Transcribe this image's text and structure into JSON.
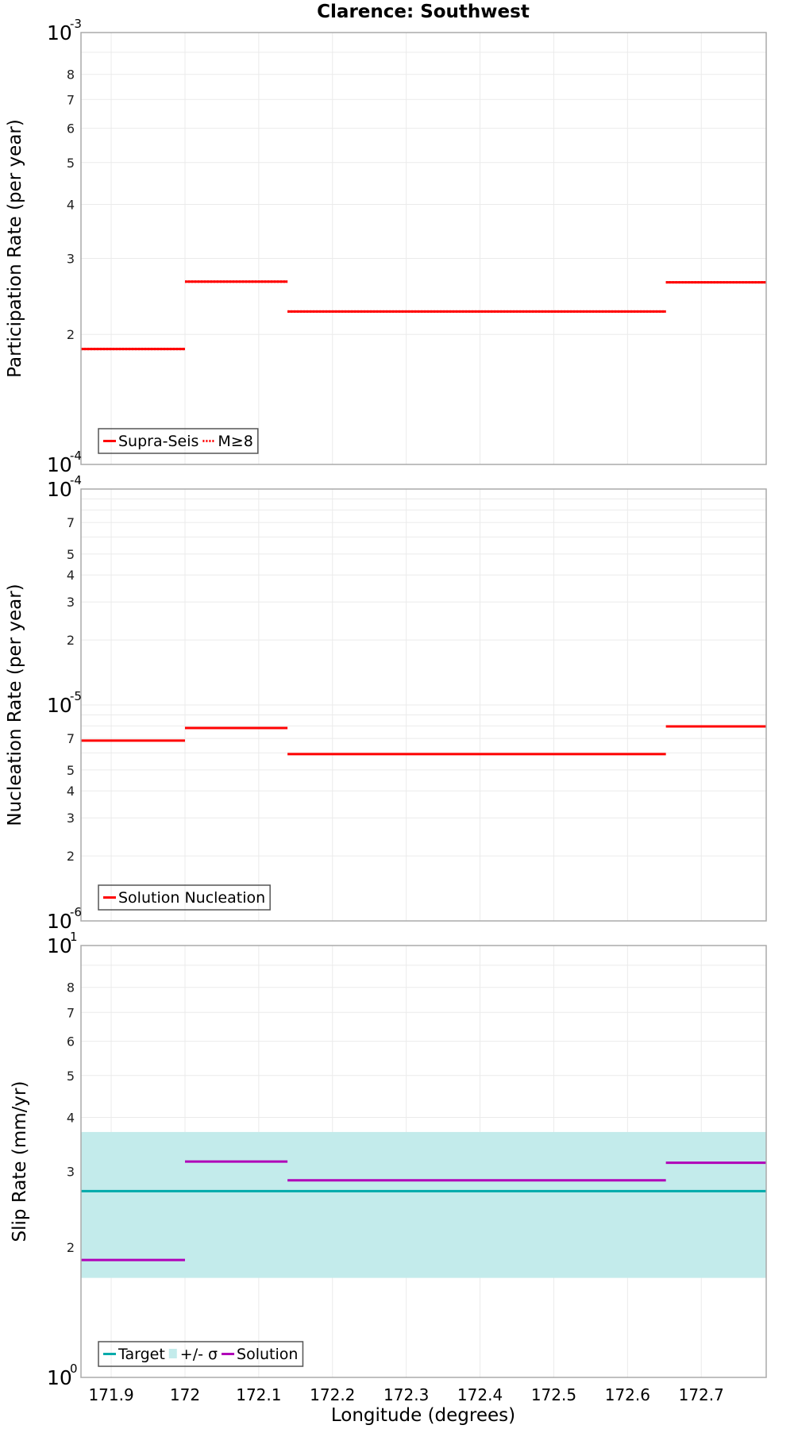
{
  "title": "Clarence: Southwest",
  "colors": {
    "solution_red": "#ff0000",
    "target_teal": "#00aaaa",
    "band_fill": "#c3ebeb",
    "solution_purple": "#b000b8",
    "grid": "#ebebeb",
    "frame": "#aaaaaa"
  },
  "chart_data": [
    {
      "type": "line",
      "panel": "participation",
      "title": "Clarence: Southwest",
      "xlabel": "Longitude (degrees)",
      "ylabel": "Participation Rate (per year)",
      "yscale": "log",
      "ylim": [
        0.0001,
        0.001
      ],
      "xlim": [
        171.859,
        172.788
      ],
      "ymajor_ticks": [
        {
          "base": "10",
          "exp": "-3",
          "value": 0.001
        },
        {
          "base": "10",
          "exp": "-4",
          "value": 0.0001
        }
      ],
      "yminor_ticks": [
        "2",
        "3",
        "4",
        "5",
        "6",
        "7",
        "8"
      ],
      "legend": [
        {
          "label": "Supra-Seis",
          "style": "solid",
          "color": "#ff0000"
        },
        {
          "label": "M≥8",
          "style": "dotted",
          "color": "#ff0000"
        }
      ],
      "series": [
        {
          "name": "Supra-Seis",
          "step_segments": [
            {
              "x0": 171.859,
              "x1": 172.0,
              "y": 0.000185
            },
            {
              "x0": 172.0,
              "x1": 172.139,
              "y": 0.000265
            },
            {
              "x0": 172.139,
              "x1": 172.652,
              "y": 0.000226
            },
            {
              "x0": 172.652,
              "x1": 172.788,
              "y": 0.000264
            }
          ]
        },
        {
          "name": "M≥8",
          "note": "overlaps Supra-Seis",
          "step_segments": [
            {
              "x0": 171.859,
              "x1": 172.0,
              "y": 0.000185
            },
            {
              "x0": 172.0,
              "x1": 172.139,
              "y": 0.000265
            },
            {
              "x0": 172.139,
              "x1": 172.652,
              "y": 0.000226
            },
            {
              "x0": 172.652,
              "x1": 172.788,
              "y": 0.000264
            }
          ]
        }
      ]
    },
    {
      "type": "line",
      "panel": "nucleation",
      "xlabel": "Longitude (degrees)",
      "ylabel": "Nucleation Rate (per year)",
      "yscale": "log",
      "ylim": [
        1e-06,
        0.0001
      ],
      "xlim": [
        171.859,
        172.788
      ],
      "ymajor_ticks": [
        {
          "base": "10",
          "exp": "-4",
          "value": 0.0001
        },
        {
          "base": "10",
          "exp": "-5",
          "value": 1e-05
        },
        {
          "base": "10",
          "exp": "-6",
          "value": 1e-06
        }
      ],
      "yminor_ticks": [
        "2",
        "3",
        "4",
        "5",
        "7"
      ],
      "legend": [
        {
          "label": "Solution Nucleation",
          "style": "solid",
          "color": "#ff0000"
        }
      ],
      "series": [
        {
          "name": "Solution Nucleation",
          "step_segments": [
            {
              "x0": 171.859,
              "x1": 172.0,
              "y": 6.84e-06
            },
            {
              "x0": 172.0,
              "x1": 172.139,
              "y": 7.82e-06
            },
            {
              "x0": 172.139,
              "x1": 172.652,
              "y": 5.92e-06
            },
            {
              "x0": 172.652,
              "x1": 172.788,
              "y": 7.96e-06
            }
          ]
        }
      ]
    },
    {
      "type": "line",
      "panel": "slip",
      "xlabel": "Longitude (degrees)",
      "ylabel": "Slip Rate (mm/yr)",
      "yscale": "log",
      "ylim": [
        1,
        10
      ],
      "xlim": [
        171.859,
        172.788
      ],
      "xticks": [
        "171.9",
        "172",
        "172.1",
        "172.2",
        "172.3",
        "172.4",
        "172.5",
        "172.6",
        "172.7"
      ],
      "ymajor_ticks": [
        {
          "base": "10",
          "exp": "1",
          "value": 10
        },
        {
          "base": "10",
          "exp": "0",
          "value": 1
        }
      ],
      "yminor_ticks": [
        "2",
        "3",
        "4",
        "5",
        "6",
        "7",
        "8"
      ],
      "legend": [
        {
          "label": "Target",
          "style": "solid",
          "color": "#00aaaa"
        },
        {
          "label": "+/- σ",
          "style": "fill",
          "color": "#c3ebeb"
        },
        {
          "label": "Solution",
          "style": "solid",
          "color": "#b000b8"
        }
      ],
      "series": [
        {
          "name": "Target",
          "step_segments": [
            {
              "x0": 171.859,
              "x1": 172.788,
              "y": 2.7
            }
          ]
        },
        {
          "name": "+/- σ",
          "band": {
            "x0": 171.859,
            "x1": 172.788,
            "y_low": 1.7,
            "y_high": 3.7
          }
        },
        {
          "name": "Solution",
          "step_segments": [
            {
              "x0": 171.859,
              "x1": 172.0,
              "y": 1.87
            },
            {
              "x0": 172.0,
              "x1": 172.139,
              "y": 3.16
            },
            {
              "x0": 172.139,
              "x1": 172.652,
              "y": 2.86
            },
            {
              "x0": 172.652,
              "x1": 172.788,
              "y": 3.14
            }
          ]
        }
      ]
    }
  ],
  "panels": [
    {
      "ylabel": "Participation Rate (per year)",
      "legend_labels": [
        "Supra-Seis",
        "M≥8"
      ]
    },
    {
      "ylabel": "Nucleation Rate (per year)",
      "legend_labels": [
        "Solution Nucleation"
      ]
    },
    {
      "ylabel": "Slip Rate (mm/yr)",
      "legend_labels": [
        "Target",
        "+/- σ",
        "Solution"
      ]
    }
  ],
  "xaxis": {
    "label": "Longitude (degrees)",
    "ticks": [
      "171.9",
      "172",
      "172.1",
      "172.2",
      "172.3",
      "172.4",
      "172.5",
      "172.6",
      "172.7"
    ],
    "tick_values": [
      171.9,
      172.0,
      172.1,
      172.2,
      172.3,
      172.4,
      172.5,
      172.6,
      172.7
    ]
  }
}
